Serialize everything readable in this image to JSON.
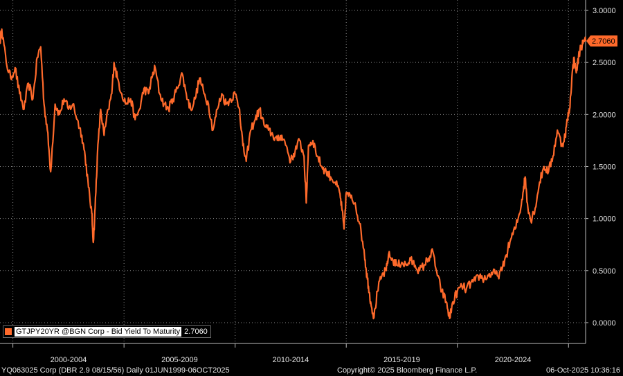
{
  "chart_data": {
    "type": "line",
    "yticks": [
      "3.0000",
      "2.5000",
      "2.0000",
      "1.5000",
      "1.0000",
      "0.5000",
      "0.0000"
    ],
    "ytick_values": [
      3.0,
      2.5,
      2.0,
      1.5,
      1.0,
      0.5,
      0.0
    ],
    "ylim": [
      -0.2,
      3.1
    ],
    "xlim": [
      1999.42,
      2025.77
    ],
    "xtick_labels": [
      "2000-2004",
      "2005-2009",
      "2010-2014",
      "2015-2019",
      "2020-2024"
    ],
    "xtick_centers": [
      2002.5,
      2007.5,
      2012.5,
      2017.5,
      2022.5
    ],
    "xgrid": [
      2000,
      2005,
      2010,
      2015,
      2020,
      2025
    ],
    "grid": true,
    "last_value_label": "2.7060",
    "last_value": 2.706,
    "series": [
      {
        "name": "GTJPY20YR @BGN Corp - Bid Yield To Maturity",
        "color": "#ff6a2b",
        "points": [
          [
            1999.42,
            2.7
          ],
          [
            1999.5,
            2.82
          ],
          [
            1999.7,
            2.5
          ],
          [
            1999.9,
            2.35
          ],
          [
            2000.1,
            2.45
          ],
          [
            2000.3,
            2.2
          ],
          [
            2000.5,
            2.05
          ],
          [
            2000.7,
            2.3
          ],
          [
            2000.9,
            2.15
          ],
          [
            2001.1,
            2.55
          ],
          [
            2001.25,
            2.65
          ],
          [
            2001.4,
            2.1
          ],
          [
            2001.55,
            1.85
          ],
          [
            2001.7,
            1.45
          ],
          [
            2001.9,
            2.1
          ],
          [
            2002.1,
            2.0
          ],
          [
            2002.3,
            2.15
          ],
          [
            2002.5,
            2.05
          ],
          [
            2002.7,
            2.1
          ],
          [
            2002.9,
            1.95
          ],
          [
            2003.1,
            1.8
          ],
          [
            2003.25,
            1.6
          ],
          [
            2003.4,
            1.3
          ],
          [
            2003.55,
            1.05
          ],
          [
            2003.62,
            0.77
          ],
          [
            2003.7,
            1.1
          ],
          [
            2003.8,
            1.6
          ],
          [
            2003.95,
            2.05
          ],
          [
            2004.1,
            1.8
          ],
          [
            2004.3,
            2.05
          ],
          [
            2004.45,
            2.2
          ],
          [
            2004.55,
            2.5
          ],
          [
            2004.7,
            2.35
          ],
          [
            2004.9,
            2.2
          ],
          [
            2005.1,
            2.1
          ],
          [
            2005.3,
            2.15
          ],
          [
            2005.5,
            1.95
          ],
          [
            2005.7,
            2.05
          ],
          [
            2005.9,
            2.25
          ],
          [
            2006.1,
            2.2
          ],
          [
            2006.25,
            2.35
          ],
          [
            2006.4,
            2.45
          ],
          [
            2006.6,
            2.2
          ],
          [
            2006.8,
            2.1
          ],
          [
            2007.0,
            2.05
          ],
          [
            2007.2,
            2.15
          ],
          [
            2007.4,
            2.25
          ],
          [
            2007.6,
            2.4
          ],
          [
            2007.8,
            2.2
          ],
          [
            2008.0,
            2.05
          ],
          [
            2008.2,
            2.15
          ],
          [
            2008.4,
            2.35
          ],
          [
            2008.6,
            2.2
          ],
          [
            2008.8,
            2.1
          ],
          [
            2009.0,
            1.85
          ],
          [
            2009.2,
            2.05
          ],
          [
            2009.4,
            2.2
          ],
          [
            2009.6,
            2.1
          ],
          [
            2009.8,
            2.15
          ],
          [
            2010.0,
            2.2
          ],
          [
            2010.2,
            2.05
          ],
          [
            2010.35,
            1.7
          ],
          [
            2010.5,
            1.55
          ],
          [
            2010.7,
            1.85
          ],
          [
            2010.9,
            1.95
          ],
          [
            2011.1,
            2.05
          ],
          [
            2011.3,
            1.9
          ],
          [
            2011.5,
            1.85
          ],
          [
            2011.7,
            1.8
          ],
          [
            2011.9,
            1.75
          ],
          [
            2012.1,
            1.8
          ],
          [
            2012.3,
            1.7
          ],
          [
            2012.5,
            1.55
          ],
          [
            2012.7,
            1.65
          ],
          [
            2012.9,
            1.75
          ],
          [
            2013.1,
            1.6
          ],
          [
            2013.2,
            1.15
          ],
          [
            2013.3,
            1.7
          ],
          [
            2013.5,
            1.75
          ],
          [
            2013.7,
            1.6
          ],
          [
            2013.9,
            1.5
          ],
          [
            2014.1,
            1.45
          ],
          [
            2014.3,
            1.4
          ],
          [
            2014.5,
            1.35
          ],
          [
            2014.7,
            1.25
          ],
          [
            2014.8,
            1.1
          ],
          [
            2014.9,
            0.9
          ],
          [
            2015.0,
            1.25
          ],
          [
            2015.2,
            1.2
          ],
          [
            2015.4,
            1.15
          ],
          [
            2015.6,
            0.95
          ],
          [
            2015.8,
            0.7
          ],
          [
            2015.9,
            0.5
          ],
          [
            2016.0,
            0.35
          ],
          [
            2016.1,
            0.2
          ],
          [
            2016.25,
            0.05
          ],
          [
            2016.4,
            0.3
          ],
          [
            2016.6,
            0.45
          ],
          [
            2016.8,
            0.5
          ],
          [
            2016.9,
            0.65
          ],
          [
            2017.1,
            0.6
          ],
          [
            2017.3,
            0.55
          ],
          [
            2017.5,
            0.58
          ],
          [
            2017.7,
            0.55
          ],
          [
            2017.9,
            0.6
          ],
          [
            2018.1,
            0.55
          ],
          [
            2018.3,
            0.5
          ],
          [
            2018.5,
            0.55
          ],
          [
            2018.7,
            0.62
          ],
          [
            2018.9,
            0.68
          ],
          [
            2019.1,
            0.45
          ],
          [
            2019.3,
            0.3
          ],
          [
            2019.5,
            0.2
          ],
          [
            2019.65,
            0.04
          ],
          [
            2019.8,
            0.2
          ],
          [
            2020.0,
            0.3
          ],
          [
            2020.2,
            0.35
          ],
          [
            2020.4,
            0.32
          ],
          [
            2020.6,
            0.38
          ],
          [
            2020.8,
            0.4
          ],
          [
            2021.0,
            0.45
          ],
          [
            2021.2,
            0.42
          ],
          [
            2021.4,
            0.45
          ],
          [
            2021.6,
            0.48
          ],
          [
            2021.8,
            0.45
          ],
          [
            2022.0,
            0.5
          ],
          [
            2022.2,
            0.65
          ],
          [
            2022.4,
            0.8
          ],
          [
            2022.6,
            0.9
          ],
          [
            2022.8,
            1.05
          ],
          [
            2022.95,
            1.25
          ],
          [
            2023.05,
            1.4
          ],
          [
            2023.15,
            1.15
          ],
          [
            2023.3,
            0.98
          ],
          [
            2023.5,
            1.1
          ],
          [
            2023.7,
            1.35
          ],
          [
            2023.9,
            1.5
          ],
          [
            2024.1,
            1.45
          ],
          [
            2024.3,
            1.6
          ],
          [
            2024.5,
            1.85
          ],
          [
            2024.7,
            1.7
          ],
          [
            2024.85,
            1.8
          ],
          [
            2024.95,
            1.95
          ],
          [
            2025.05,
            2.05
          ],
          [
            2025.15,
            2.35
          ],
          [
            2025.25,
            2.55
          ],
          [
            2025.35,
            2.4
          ],
          [
            2025.45,
            2.55
          ],
          [
            2025.55,
            2.65
          ],
          [
            2025.65,
            2.68
          ],
          [
            2025.77,
            2.706
          ]
        ]
      }
    ]
  },
  "legend": {
    "label": "GTJPY20YR @BGN Corp - Bid Yield To Maturity",
    "value": "2.7060",
    "color": "#ff6a2b"
  },
  "footer": {
    "left": "YQ063025 Corp (DBR 2.9 08/15/56) Daily 01JUN1999-06OCT2025",
    "middle": "Copyright© 2025 Bloomberg Finance L.P.",
    "right": "06-Oct-2025 10:36:16"
  }
}
